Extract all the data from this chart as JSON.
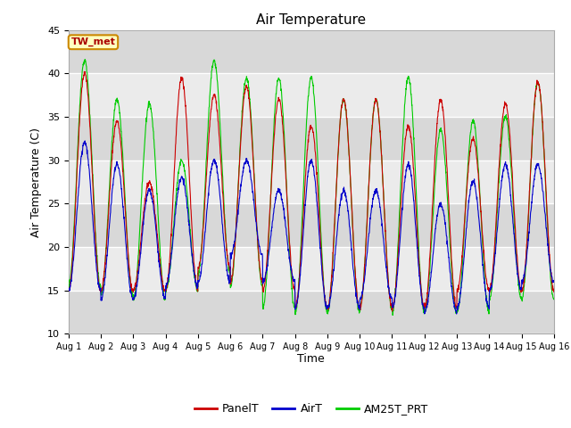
{
  "title": "Air Temperature",
  "ylabel": "Air Temperature (C)",
  "xlabel": "Time",
  "ylim": [
    10,
    45
  ],
  "yticks": [
    10,
    15,
    20,
    25,
    30,
    35,
    40,
    45
  ],
  "legend_station": "TW_met",
  "colors": {
    "PanelT": "#cc0000",
    "AirT": "#0000cc",
    "AM25T_PRT": "#00cc00"
  },
  "band_light": "#ebebeb",
  "band_dark": "#d8d8d8",
  "n_per_day": 144,
  "n_days": 15,
  "panel_peaks": [
    40.0,
    34.5,
    27.5,
    39.5,
    37.5,
    38.5,
    37.0,
    34.0,
    37.0,
    37.0,
    34.0,
    37.0,
    32.5,
    36.5,
    39.0
  ],
  "air_peaks": [
    32.0,
    29.5,
    26.5,
    28.0,
    30.0,
    30.0,
    26.5,
    30.0,
    26.5,
    26.5,
    29.5,
    25.0,
    27.5,
    29.5,
    29.5
  ],
  "am25_peaks": [
    41.5,
    37.0,
    36.5,
    30.0,
    41.5,
    39.5,
    39.5,
    39.5,
    37.0,
    37.0,
    39.5,
    33.5,
    34.5,
    35.0,
    39.0
  ],
  "panel_mins": [
    15.0,
    15.0,
    15.0,
    15.0,
    17.5,
    16.0,
    15.0,
    13.0,
    13.0,
    13.0,
    13.0,
    13.0,
    15.0,
    15.0,
    15.0
  ],
  "air_mins": [
    15.0,
    14.0,
    14.0,
    15.5,
    16.0,
    19.0,
    16.0,
    13.0,
    13.0,
    14.0,
    13.0,
    12.5,
    13.0,
    15.0,
    16.0
  ],
  "am25_mins": [
    15.5,
    14.5,
    14.0,
    15.0,
    17.0,
    15.5,
    13.0,
    12.5,
    12.5,
    13.0,
    12.5,
    12.5,
    12.5,
    14.0,
    14.0
  ]
}
